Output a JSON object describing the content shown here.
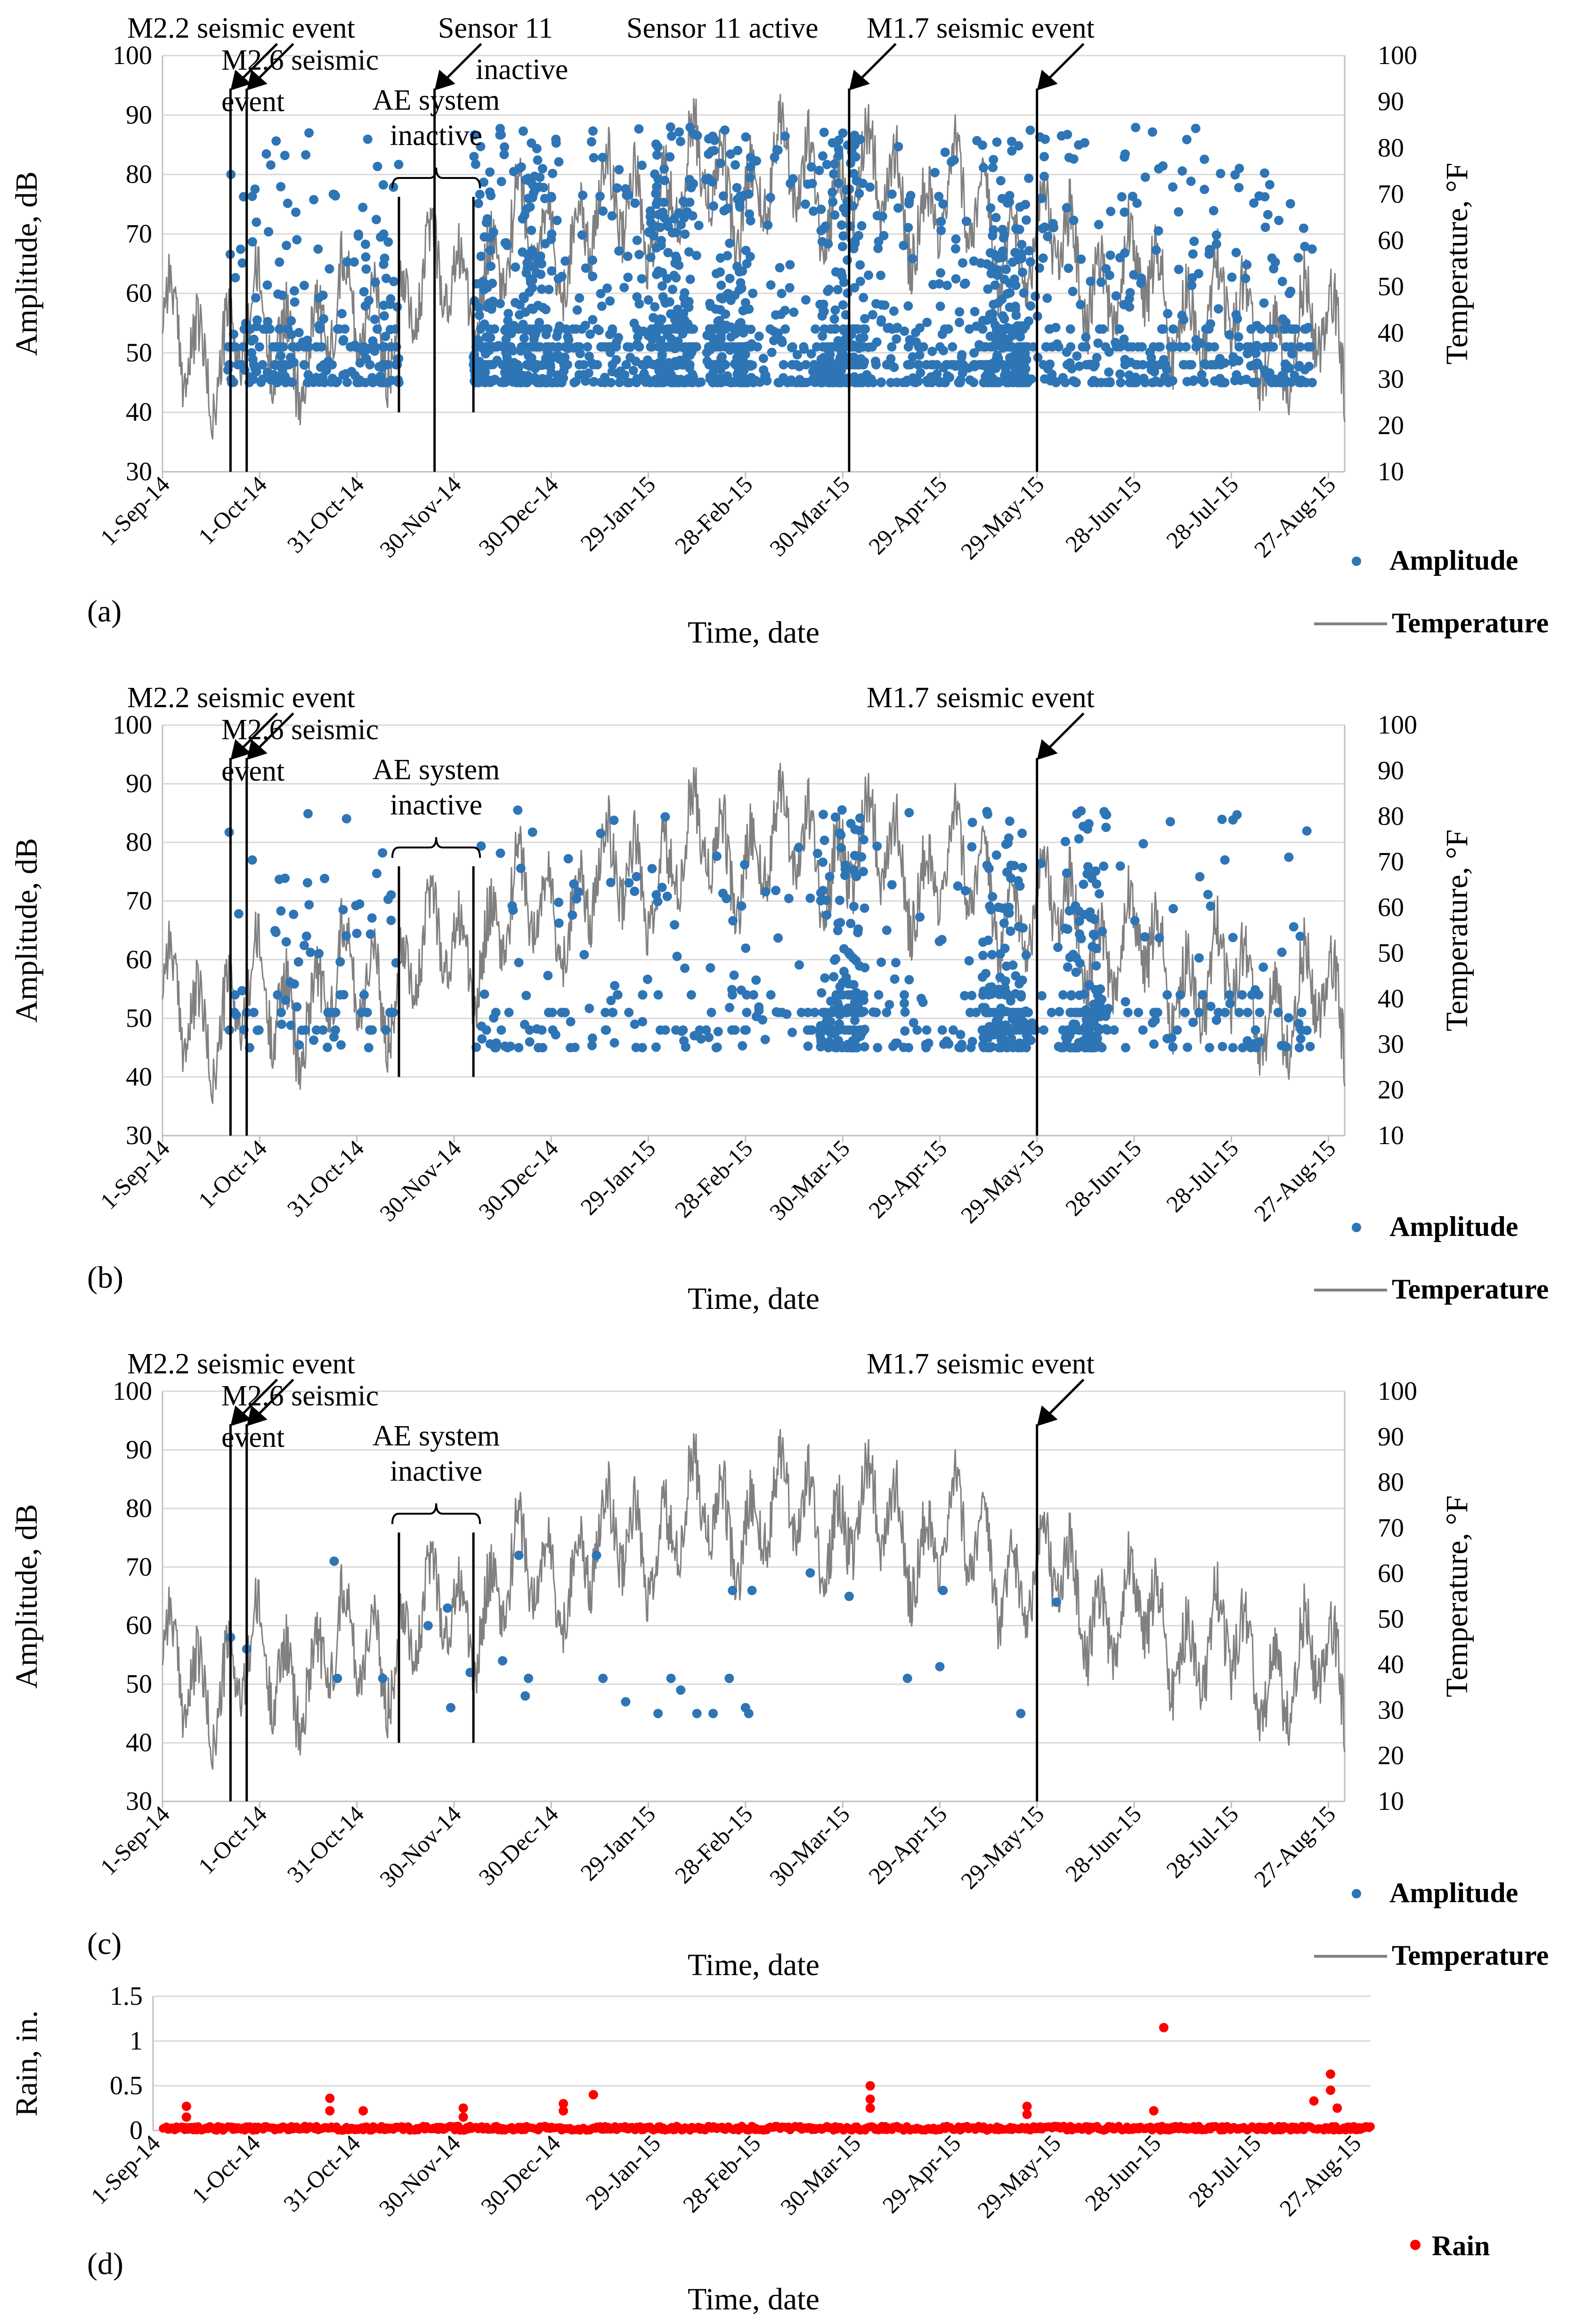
{
  "chart_data": [
    {
      "panel": "(a)",
      "type": "scatter",
      "xlabel": "Time, date",
      "ylabel": "Amplitude, dB",
      "y2label": "Temperature, °F",
      "ylim": [
        30,
        100
      ],
      "y2lim": [
        10,
        100
      ],
      "xlim": [
        "1-Sep-14",
        "1-Sep-15"
      ],
      "x_ticks": [
        "1-Sep-14",
        "1-Oct-14",
        "31-Oct-14",
        "30-Nov-14",
        "30-Dec-14",
        "29-Jan-15",
        "28-Feb-15",
        "30-Mar-15",
        "29-Apr-15",
        "29-May-15",
        "28-Jun-15",
        "28-Jul-15",
        "27-Aug-15"
      ],
      "y_ticks": [
        "30",
        "40",
        "50",
        "60",
        "70",
        "80",
        "90",
        "100"
      ],
      "y2_ticks": [
        "10",
        "20",
        "30",
        "40",
        "50",
        "60",
        "70",
        "80",
        "90",
        "100"
      ],
      "legend": [
        "Amplitude",
        "Temperature"
      ],
      "series": [
        {
          "name": "Amplitude",
          "type": "scatter",
          "color": "#2e75b6",
          "amplitude_range_dB": [
            45,
            88
          ],
          "inactive_gap_days": [
            73,
            96
          ],
          "density": "high",
          "clusters_days": [
            83,
            95,
            112,
            157,
            175,
            210,
            260
          ]
        },
        {
          "name": "Temperature",
          "type": "line",
          "color": "#808080",
          "range_F": [
            17,
            98
          ]
        }
      ],
      "annotations": [
        {
          "text": "M2.2 seismic event",
          "day": 21
        },
        {
          "text": "M2.6 seismic",
          "text2": "event",
          "day": 26
        },
        {
          "text": "Sensor 11",
          "text2": "inactive",
          "day": 84
        },
        {
          "text": "Sensor 11 active",
          "day": 212
        },
        {
          "text": "M1.7 seismic event",
          "day": 270
        },
        {
          "text": "AE system",
          "text2": "inactive",
          "day_start": 73,
          "day_end": 96
        }
      ]
    },
    {
      "panel": "(b)",
      "type": "scatter",
      "xlabel": "Time, date",
      "ylabel": "Amplitude, dB",
      "y2label": "Temperature, °F",
      "ylim": [
        30,
        100
      ],
      "y2lim": [
        10,
        100
      ],
      "xlim": [
        "1-Sep-14",
        "1-Sep-15"
      ],
      "x_ticks": [
        "1-Sep-14",
        "1-Oct-14",
        "31-Oct-14",
        "30-Nov-14",
        "30-Dec-14",
        "29-Jan-15",
        "28-Feb-15",
        "30-Mar-15",
        "29-Apr-15",
        "29-May-15",
        "28-Jun-15",
        "28-Jul-15",
        "27-Aug-15"
      ],
      "y_ticks": [
        "30",
        "40",
        "50",
        "60",
        "70",
        "80",
        "90",
        "100"
      ],
      "y2_ticks": [
        "10",
        "20",
        "30",
        "40",
        "50",
        "60",
        "70",
        "80",
        "90",
        "100"
      ],
      "legend": [
        "Amplitude",
        "Temperature"
      ],
      "series": [
        {
          "name": "Amplitude",
          "type": "scatter",
          "color": "#2e75b6",
          "amplitude_range_dB": [
            45,
            86
          ],
          "inactive_gap_days": [
            73,
            96
          ],
          "density": "medium",
          "clusters_days": [
            210,
            260,
            285
          ]
        },
        {
          "name": "Temperature",
          "type": "line",
          "color": "#808080",
          "range_F": [
            17,
            98
          ]
        }
      ],
      "annotations": [
        {
          "text": "M2.2 seismic event",
          "day": 21
        },
        {
          "text": "M2.6 seismic",
          "text2": "event",
          "day": 26
        },
        {
          "text": "M1.7 seismic event",
          "day": 270
        },
        {
          "text": "AE system",
          "text2": "inactive",
          "day_start": 73,
          "day_end": 96
        }
      ]
    },
    {
      "panel": "(c)",
      "type": "scatter",
      "xlabel": "Time, date",
      "ylabel": "Amplitude, dB",
      "y2label": "Temperature, °F",
      "ylim": [
        30,
        100
      ],
      "y2lim": [
        10,
        100
      ],
      "xlim": [
        "1-Sep-14",
        "1-Sep-15"
      ],
      "x_ticks": [
        "1-Sep-14",
        "1-Oct-14",
        "31-Oct-14",
        "30-Nov-14",
        "30-Dec-14",
        "29-Jan-15",
        "28-Feb-15",
        "30-Mar-15",
        "29-Apr-15",
        "29-May-15",
        "28-Jun-15",
        "28-Jul-15",
        "27-Aug-15"
      ],
      "y_ticks": [
        "30",
        "40",
        "50",
        "60",
        "70",
        "80",
        "90",
        "100"
      ],
      "y2_ticks": [
        "10",
        "20",
        "30",
        "40",
        "50",
        "60",
        "70",
        "80",
        "90",
        "100"
      ],
      "legend": [
        "Amplitude",
        "Temperature"
      ],
      "series": [
        {
          "name": "Amplitude",
          "type": "scatter",
          "color": "#2e75b6",
          "points": [
            [
              21,
              58
            ],
            [
              26,
              56
            ],
            [
              53,
              71
            ],
            [
              54,
              51
            ],
            [
              68,
              51
            ],
            [
              82,
              60
            ],
            [
              88,
              63
            ],
            [
              89,
              46
            ],
            [
              95,
              52
            ],
            [
              105,
              54
            ],
            [
              110,
              72
            ],
            [
              112,
              48
            ],
            [
              113,
              51
            ],
            [
              134,
              72
            ],
            [
              136,
              51
            ],
            [
              143,
              47
            ],
            [
              153,
              45
            ],
            [
              157,
              51
            ],
            [
              160,
              49
            ],
            [
              165,
              45
            ],
            [
              170,
              45
            ],
            [
              175,
              51
            ],
            [
              176,
              66
            ],
            [
              180,
              46
            ],
            [
              181,
              45
            ],
            [
              182,
              66
            ],
            [
              200,
              69
            ],
            [
              212,
              65
            ],
            [
              230,
              51
            ],
            [
              240,
              53
            ],
            [
              241,
              66
            ],
            [
              265,
              45
            ],
            [
              276,
              64
            ]
          ]
        },
        {
          "name": "Temperature",
          "type": "line",
          "color": "#808080",
          "range_F": [
            17,
            98
          ]
        }
      ],
      "annotations": [
        {
          "text": "M2.2 seismic event",
          "day": 21
        },
        {
          "text": "M2.6 seismic",
          "text2": "event",
          "day": 26
        },
        {
          "text": "M1.7 seismic event",
          "day": 270
        },
        {
          "text": "AE system",
          "text2": "inactive",
          "day_start": 73,
          "day_end": 96
        }
      ]
    },
    {
      "panel": "(d)",
      "type": "scatter",
      "xlabel": "Time, date",
      "ylabel": "Rain, in.",
      "ylim": [
        0,
        1.5
      ],
      "xlim": [
        "1-Sep-14",
        "1-Sep-15"
      ],
      "x_ticks": [
        "1-Sep-14",
        "1-Oct-14",
        "31-Oct-14",
        "30-Nov-14",
        "30-Dec-14",
        "29-Jan-15",
        "28-Feb-15",
        "30-Mar-15",
        "29-Apr-15",
        "29-May-15",
        "28-Jun-15",
        "28-Jul-15",
        "27-Aug-15"
      ],
      "y_ticks": [
        "0",
        "0.5",
        "1",
        "1.5"
      ],
      "legend": [
        "Rain"
      ],
      "series": [
        {
          "name": "Rain",
          "type": "scatter",
          "color": "#ff0000",
          "peaks": [
            [
              10,
              0.27
            ],
            [
              10,
              0.15
            ],
            [
              53,
              0.36
            ],
            [
              53,
              0.22
            ],
            [
              63,
              0.22
            ],
            [
              93,
              0.25
            ],
            [
              93,
              0.15
            ],
            [
              123,
              0.3
            ],
            [
              123,
              0.22
            ],
            [
              132,
              0.4
            ],
            [
              215,
              0.5
            ],
            [
              215,
              0.35
            ],
            [
              215,
              0.25
            ],
            [
              262,
              0.27
            ],
            [
              262,
              0.18
            ],
            [
              300,
              0.22
            ],
            [
              303,
              1.15
            ],
            [
              348,
              0.33
            ],
            [
              353,
              0.63
            ],
            [
              353,
              0.45
            ],
            [
              355,
              0.25
            ]
          ]
        }
      ]
    }
  ],
  "colors": {
    "amplitude": "#2e75b6",
    "temperature": "#808080",
    "rain": "#ff0000"
  }
}
